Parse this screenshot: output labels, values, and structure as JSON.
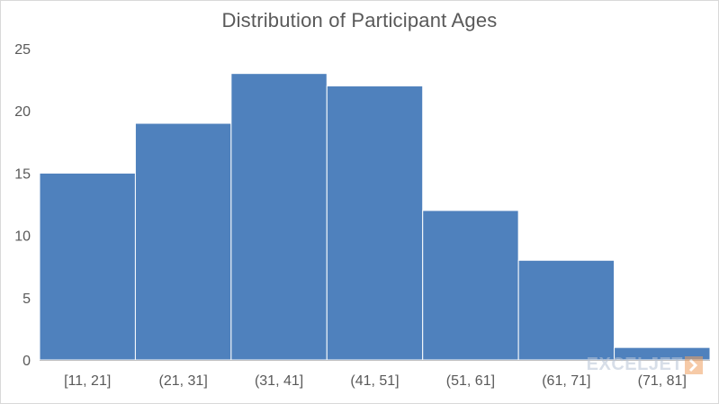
{
  "chart_data": {
    "type": "bar",
    "title": "Distribution of Participant Ages",
    "categories": [
      "[11, 21]",
      "(21, 31]",
      "(31, 41]",
      "(41, 51]",
      "(51, 61]",
      "(61, 71]",
      "(71, 81]"
    ],
    "values": [
      15,
      19,
      23,
      22,
      12,
      8,
      1
    ],
    "xlabel": "",
    "ylabel": "",
    "ylim": [
      0,
      25
    ],
    "yticks": [
      0,
      5,
      10,
      15,
      20,
      25
    ],
    "grid": false,
    "legend": "none",
    "bar_color": "#4f81bd",
    "bar_gap": 0
  },
  "watermark": {
    "text": "EXCELJET"
  },
  "colors": {
    "bar": "#4f81bd",
    "text": "#595959",
    "axis": "#bfbfbf"
  }
}
